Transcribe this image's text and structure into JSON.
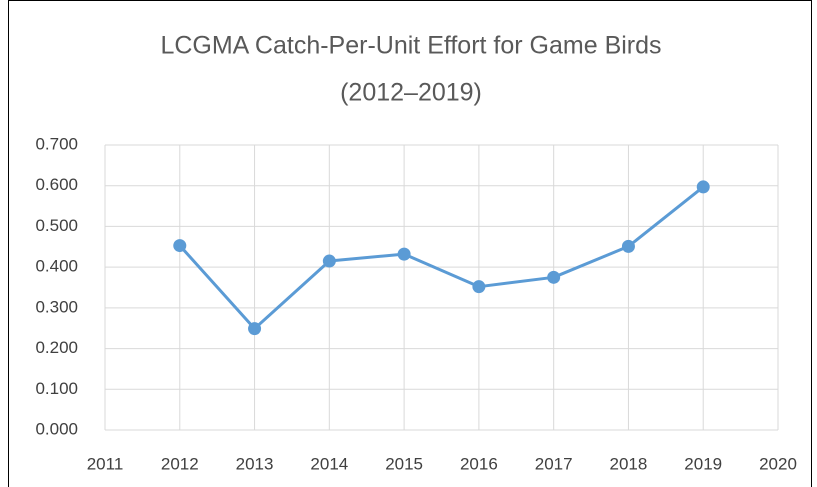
{
  "chart_data": {
    "type": "line",
    "title": [
      "LCGMA Catch-Per-Unit Effort for Game Birds",
      "(2012–2019)"
    ],
    "x": [
      2012,
      2013,
      2014,
      2015,
      2016,
      2017,
      2018,
      2019
    ],
    "series": [
      {
        "color": "#5b9bd5",
        "values": [
          0.453,
          0.249,
          0.415,
          0.432,
          0.352,
          0.375,
          0.451,
          0.597
        ]
      }
    ],
    "xlim": [
      2011,
      2020
    ],
    "xticks": [
      2011,
      2012,
      2013,
      2014,
      2015,
      2016,
      2017,
      2018,
      2019,
      2020
    ],
    "ylim": [
      0,
      0.7
    ],
    "yticks": [
      {
        "value": 0,
        "label": "0.000"
      },
      {
        "value": 0.1,
        "label": "0.100"
      },
      {
        "value": 0.2,
        "label": "0.200"
      },
      {
        "value": 0.3,
        "label": "0.300"
      },
      {
        "value": 0.4,
        "label": "0.400"
      },
      {
        "value": 0.5,
        "label": "0.500"
      },
      {
        "value": 0.6,
        "label": "0.600"
      },
      {
        "value": 0.7,
        "label": "0.700"
      }
    ],
    "grid": true
  }
}
